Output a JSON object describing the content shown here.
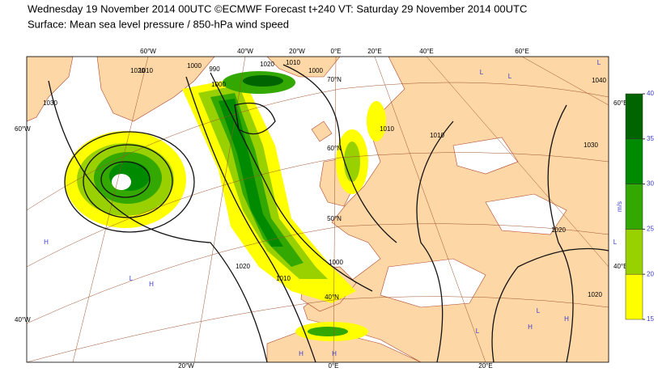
{
  "header": {
    "title": "Wednesday 19 November 2014 00UTC ©ECMWF Forecast t+240 VT: Saturday 29 November 2014 00UTC",
    "subtitle": "Surface: Mean sea level pressure / 850-hPa wind speed"
  },
  "colorbar": {
    "ticks": [
      15,
      20,
      25,
      30,
      35,
      40
    ],
    "colors": [
      "#ffff00",
      "#99d100",
      "#33a800",
      "#008a00",
      "#006400"
    ],
    "unit": "m/s"
  },
  "graticule_labels": [
    "60°W",
    "40°W",
    "20°W",
    "0°E",
    "20°E",
    "40°E",
    "60°E",
    "20°W",
    "0°E",
    "20°E",
    "60°W",
    "40°W",
    "60°E",
    "40°E",
    "70°N",
    "60°N",
    "50°N",
    "40°N"
  ],
  "isobar_labels": [
    1000,
    1010,
    1020,
    1030,
    1040,
    990,
    1010,
    1000,
    1020,
    1030,
    1020,
    1020,
    1010,
    1020,
    1010,
    1010,
    1000,
    1000
  ],
  "pressure_centres": [
    "L",
    "H",
    "L",
    "H",
    "L",
    "L",
    "H",
    "L",
    "H",
    "L",
    "L",
    "H",
    "H"
  ]
}
